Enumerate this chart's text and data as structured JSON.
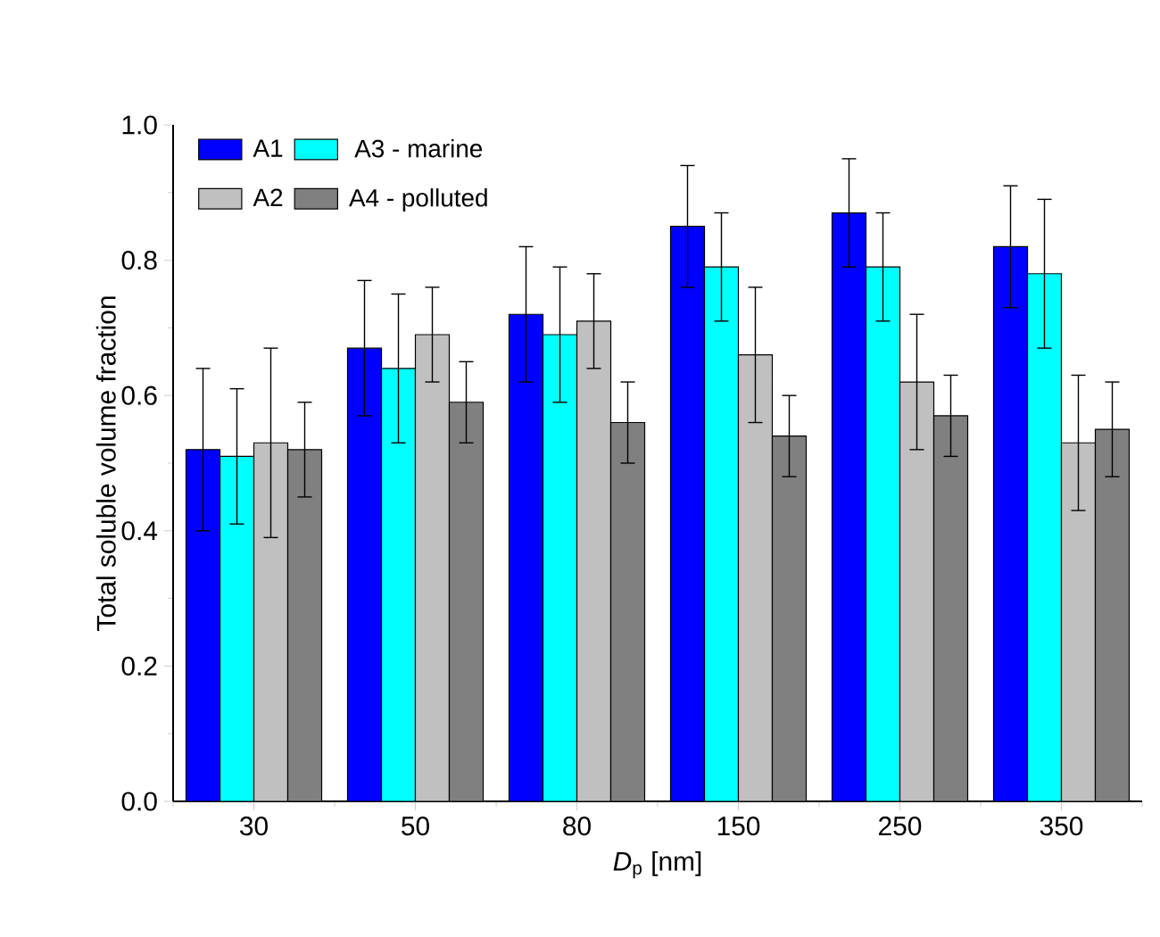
{
  "chart_data": {
    "type": "bar",
    "xlabel": "*D*$_{p}$ [nm]",
    "ylabel": "Total soluble volume fraction",
    "categories": [
      "30",
      "50",
      "80",
      "150",
      "250",
      "350"
    ],
    "series": [
      {
        "name": "A1",
        "color": "#0000ff",
        "values": [
          0.52,
          0.67,
          0.72,
          0.85,
          0.87,
          0.82
        ],
        "errors": [
          0.12,
          0.1,
          0.1,
          0.09,
          0.08,
          0.09
        ]
      },
      {
        "name": "A3 - marine",
        "color": "#00ffff",
        "values": [
          0.51,
          0.64,
          0.69,
          0.79,
          0.79,
          0.78
        ],
        "errors": [
          0.1,
          0.11,
          0.1,
          0.08,
          0.08,
          0.11
        ]
      },
      {
        "name": "A2",
        "color": "#c0c0c0",
        "values": [
          0.53,
          0.69,
          0.71,
          0.66,
          0.62,
          0.53
        ],
        "errors": [
          0.14,
          0.07,
          0.07,
          0.1,
          0.1,
          0.1
        ]
      },
      {
        "name": "A4 - polluted",
        "color": "#808080",
        "values": [
          0.52,
          0.59,
          0.56,
          0.54,
          0.57,
          0.55
        ],
        "errors": [
          0.07,
          0.06,
          0.06,
          0.06,
          0.06,
          0.07
        ]
      }
    ],
    "ylim": [
      0,
      1.0
    ],
    "yticks": [
      {
        "value": 0,
        "label": "0.0"
      },
      0.2,
      0.4,
      0.6,
      0.8,
      {
        "value": 1.0,
        "label": "1.0"
      }
    ],
    "legend": "top left"
  }
}
